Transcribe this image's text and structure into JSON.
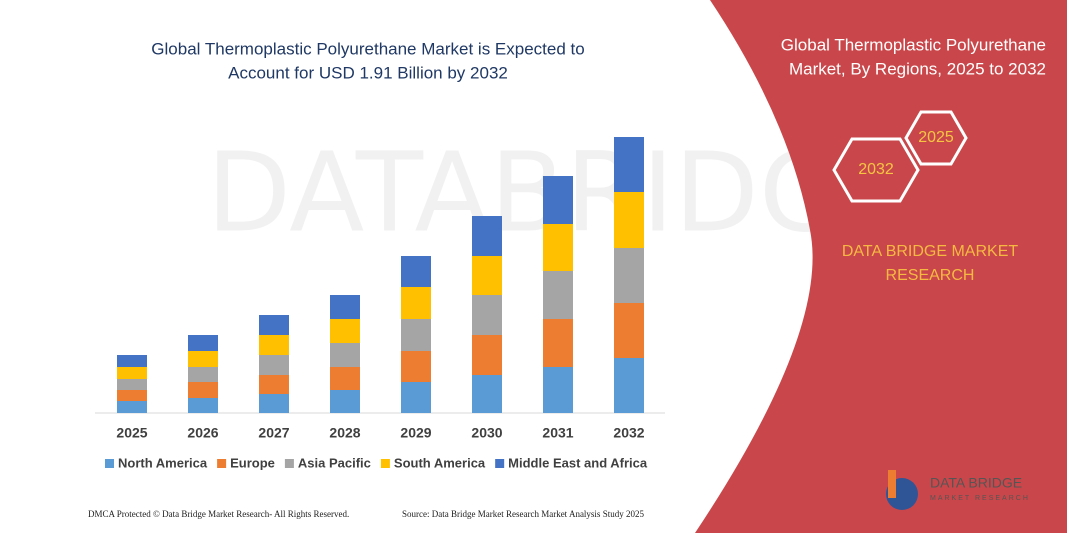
{
  "chart_data": {
    "type": "stacked-bar",
    "title": [
      "Global Thermoplastic Polyurethane Market is Expected to",
      "Account for USD 1.91 Billion by 2032"
    ],
    "categories": [
      "2025",
      "2026",
      "2027",
      "2028",
      "2029",
      "2030",
      "2031",
      "2032"
    ],
    "series": [
      {
        "name": "North America",
        "color": "#5b9bd5",
        "values": [
          12,
          15,
          19,
          23,
          31,
          38,
          46,
          55
        ]
      },
      {
        "name": "Europe",
        "color": "#ed7d31",
        "values": [
          11,
          16,
          19,
          23,
          31,
          40,
          48,
          55
        ]
      },
      {
        "name": "Asia Pacific",
        "color": "#a5a5a5",
        "values": [
          11,
          15,
          20,
          24,
          32,
          40,
          48,
          55
        ]
      },
      {
        "name": "South America",
        "color": "#ffc000",
        "values": [
          12,
          16,
          20,
          24,
          32,
          39,
          47,
          56
        ]
      },
      {
        "name": "Middle East and Africa",
        "color": "#4472c4",
        "values": [
          12,
          16,
          20,
          24,
          31,
          40,
          48,
          55
        ]
      }
    ],
    "legend": "bottom"
  },
  "panel": {
    "title": [
      "Global Thermoplastic Polyurethane",
      "Market, By Regions, 2025 to 2032"
    ],
    "hex_top": "2025",
    "hex_bottom": "2032",
    "brand": [
      "DATA BRIDGE MARKET",
      "RESEARCH"
    ]
  },
  "logo": {
    "name": "DATA BRIDGE",
    "sub": "MARKET RESEARCH"
  },
  "watermark": "DATABRIDGE",
  "footer": {
    "left": "DMCA Protected © Data Bridge Market Research- All Rights Reserved.",
    "right": "Source: Data Bridge Market Research Market Analysis Study 2025"
  }
}
